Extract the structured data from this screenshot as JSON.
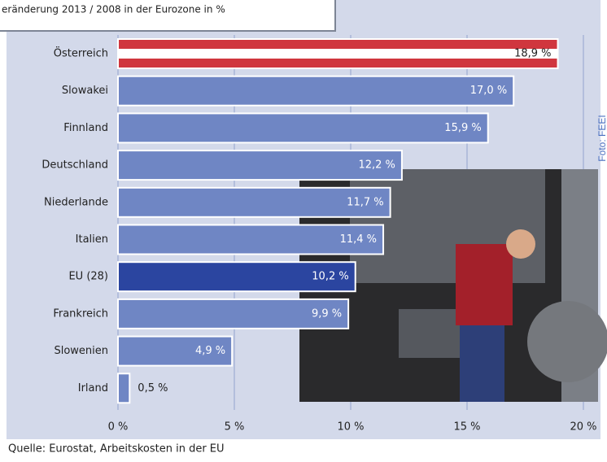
{
  "chart_data": {
    "type": "hbar",
    "title": "eränderung 2013 / 2008 in der Eurozone in %",
    "categories": [
      "Österreich",
      "Slowakei",
      "Finnland",
      "Deutschland",
      "Niederlande",
      "Italien",
      "EU (28)",
      "Frankreich",
      "Slowenien",
      "Irland"
    ],
    "values": [
      18.9,
      17.0,
      15.9,
      12.2,
      11.7,
      11.4,
      10.2,
      9.9,
      4.9,
      0.5
    ],
    "value_labels": [
      "18,9 %",
      "17,0 %",
      "15,9 %",
      "12,2 %",
      "11,7 %",
      "11,4 %",
      "10,2 %",
      "9,9 %",
      "4,9 %",
      "0,5 %"
    ],
    "color": "#6f86c4",
    "highlight_color": "#2b45a0",
    "xlim": [
      0,
      20
    ],
    "xticks": [
      {
        "value": 0,
        "label": "0 %"
      },
      {
        "value": 5,
        "label": "5 %"
      },
      {
        "value": 10,
        "label": "10 %"
      },
      {
        "value": 15,
        "label": "15 %"
      },
      {
        "value": 20,
        "label": "20 %"
      }
    ],
    "grid": true,
    "source": "Quelle: Eurostat, Arbeitskosten in der EU",
    "photo_credit": "Foto: FEEI"
  }
}
